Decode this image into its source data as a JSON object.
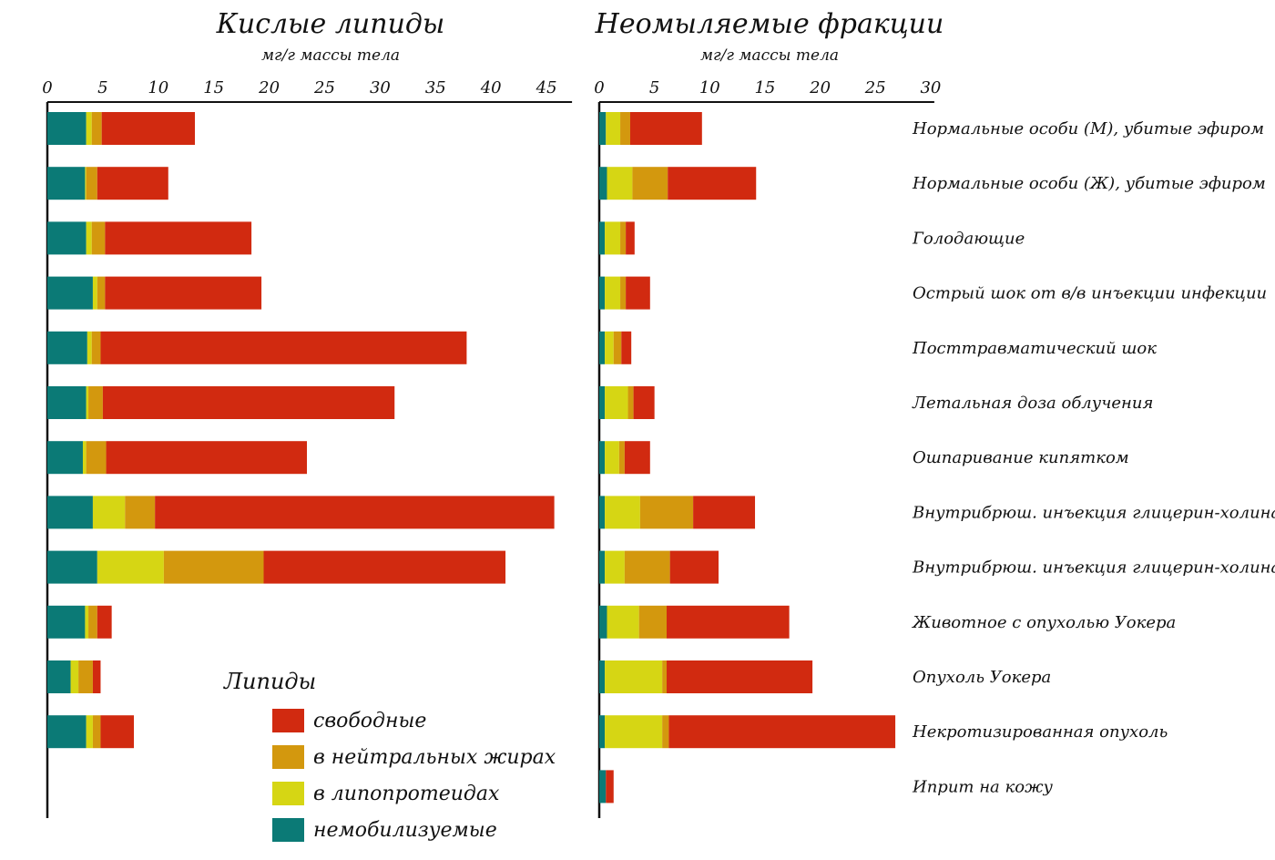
{
  "chart_data": {
    "type": "bar",
    "orientation": "horizontal",
    "stacked": true,
    "categories": [
      "Нормальные особи (М), убитые эфиром",
      "Нормальные особи (Ж), убитые эфиром",
      "Голодающие",
      "Острый шок от в/в инъекции инфекции",
      "Посттравматический шок",
      "Летальная доза облучения",
      "Ошпаривание кипятком",
      "Внутрибрюш. инъекция глицерин-холина",
      "Внутрибрюш. инъекция глицерин-холина",
      "Животное с опухолью Уокера",
      "Опухоль Уокера",
      "Некротизированная опухоль",
      "Иприт на кожу"
    ],
    "colors": {
      "немобилизуемые": "#0b7a76",
      "в липопротеидах": "#d6d614",
      "в нейтральных жирах": "#d3980e",
      "свободные": "#d12a10"
    },
    "panels": [
      {
        "title": "Кислые липиды",
        "subtitle": "мг/г массы тела",
        "xlim": [
          0,
          45
        ],
        "xticks": [
          0,
          5,
          10,
          15,
          20,
          25,
          30,
          35,
          40,
          45
        ],
        "series": [
          {
            "name": "немобилизуемые",
            "values": [
              3.5,
              3.4,
              3.5,
              4.1,
              3.6,
              3.5,
              3.2,
              4.1,
              4.5,
              3.4,
              2.1,
              3.5,
              null
            ]
          },
          {
            "name": "в липопротеидах",
            "values": [
              0.5,
              0.1,
              0.5,
              0.4,
              0.4,
              0.2,
              0.3,
              2.9,
              6.0,
              0.3,
              0.7,
              0.6,
              null
            ]
          },
          {
            "name": "в нейтральных жирах",
            "values": [
              0.9,
              1.0,
              1.2,
              0.7,
              0.8,
              1.3,
              1.8,
              2.7,
              9.0,
              0.8,
              1.3,
              0.7,
              null
            ]
          },
          {
            "name": "свободные",
            "values": [
              8.4,
              6.4,
              13.2,
              14.1,
              33.0,
              26.3,
              18.1,
              36.0,
              21.8,
              1.3,
              0.7,
              3.0,
              null
            ]
          }
        ]
      },
      {
        "title": "Неомыляемые фракции",
        "subtitle": "мг/г массы тела",
        "xlim": [
          0,
          30
        ],
        "xticks": [
          0,
          5,
          10,
          15,
          20,
          25,
          30
        ],
        "series": [
          {
            "name": "немобилизуемые",
            "values": [
              0.6,
              0.7,
              0.5,
              0.5,
              0.5,
              0.5,
              0.5,
              0.5,
              0.5,
              0.7,
              0.5,
              0.5,
              0.6
            ]
          },
          {
            "name": "в липопротеидах",
            "values": [
              1.3,
              2.3,
              1.4,
              1.4,
              0.8,
              2.1,
              1.3,
              3.2,
              1.8,
              2.9,
              5.2,
              5.2,
              0
            ]
          },
          {
            "name": "в нейтральных жирах",
            "values": [
              0.9,
              3.2,
              0.5,
              0.5,
              0.7,
              0.5,
              0.5,
              4.8,
              4.1,
              2.5,
              0.4,
              0.6,
              0
            ]
          },
          {
            "name": "свободные",
            "values": [
              6.5,
              8.0,
              0.8,
              2.2,
              0.9,
              1.9,
              2.3,
              5.6,
              4.4,
              11.1,
              13.2,
              20.5,
              0.7
            ]
          }
        ]
      }
    ],
    "legend": {
      "title": "Липиды",
      "placement": "bottom-left of left panel",
      "items": [
        "свободные",
        "в нейтральных жирах",
        "в липопротеидах",
        "немобилизуемые"
      ]
    }
  }
}
